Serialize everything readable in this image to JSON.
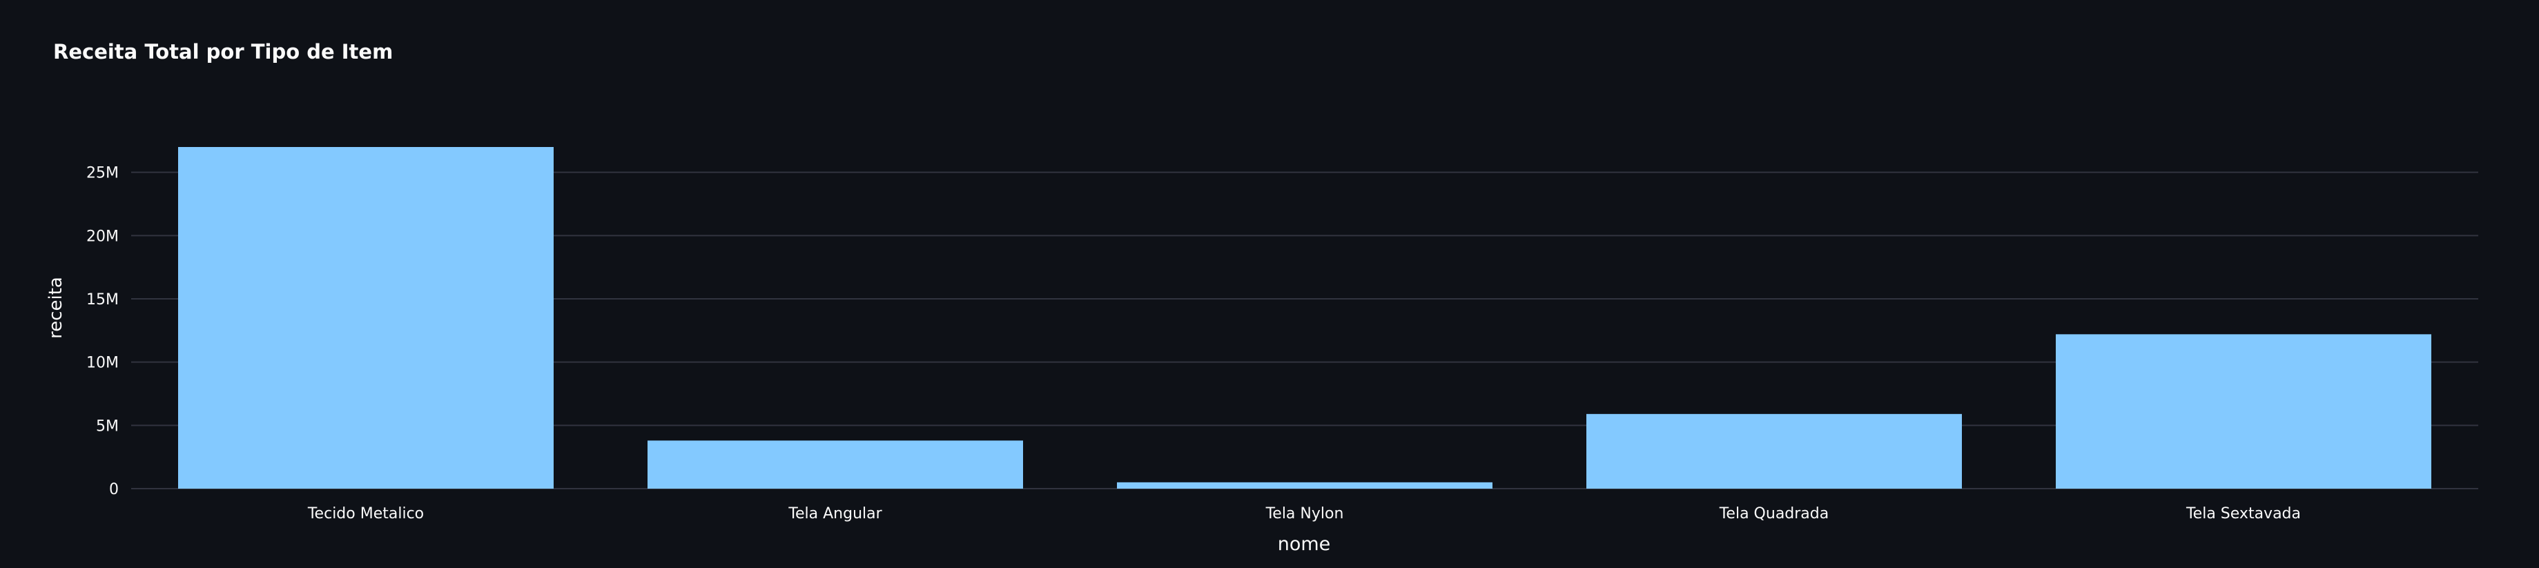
{
  "chart_data": {
    "type": "bar",
    "title": "Receita Total por Tipo de Item",
    "xlabel": "nome",
    "ylabel": "receita",
    "categories": [
      "Tecido Metalico",
      "Tela Angular",
      "Tela Nylon",
      "Tela Quadrada",
      "Tela Sextavada"
    ],
    "values": [
      27000000,
      3800000,
      500000,
      5900000,
      12200000
    ],
    "ylim": [
      0,
      28800000
    ],
    "yticks": [
      0,
      5000000,
      10000000,
      15000000,
      20000000,
      25000000
    ],
    "ytick_labels": [
      "0",
      "5M",
      "10M",
      "15M",
      "20M",
      "25M"
    ],
    "grid": true,
    "legend": "none",
    "colors": {
      "background": "#0e1117",
      "bar": "#83c9ff",
      "grid": "#31333f",
      "text": "#fafafa"
    }
  }
}
